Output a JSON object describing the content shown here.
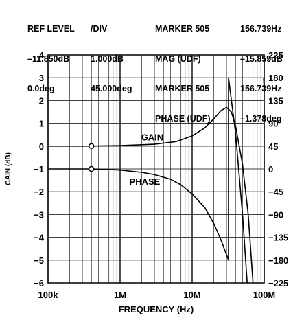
{
  "header": {
    "col1": [
      "REF LEVEL",
      "–11.850dB",
      "0.0deg"
    ],
    "col2": [
      "/DIV",
      "1.000dB",
      "45.000deg"
    ],
    "col3": [
      "MARKER 505",
      "MAG (UDF)",
      "MARKER 505",
      "PHASE (UDF)"
    ],
    "col4": [
      "156.739Hz",
      "–15.859dB",
      "156.739Hz",
      "–1.378deg"
    ]
  },
  "chart_data": {
    "type": "line",
    "xscale": "log",
    "xlim": [
      100000,
      100000000
    ],
    "ylim_left": [
      -6,
      4
    ],
    "ylim_right": [
      -225,
      225
    ],
    "xlabel": "FREQUENCY (Hz)",
    "ylabel": "GAIN (dB)",
    "x_ticks": [
      "100k",
      "1M",
      "10M",
      "100M"
    ],
    "y_ticks_left": [
      "4",
      "3",
      "2",
      "1",
      "0",
      "−1",
      "−2",
      "−3",
      "−4",
      "−5",
      "−6"
    ],
    "y_ticks_right": [
      "225",
      "180",
      "135",
      "90",
      "45",
      "0",
      "−45",
      "−90",
      "−135",
      "−180",
      "−225"
    ],
    "grid": true,
    "annotations": [
      "GAIN",
      "PHASE"
    ],
    "series": [
      {
        "name": "GAIN",
        "axis": "left",
        "x": [
          100000,
          400000,
          1000000,
          3000000,
          6000000,
          10000000,
          15000000,
          20000000,
          25000000,
          30000000,
          35000000,
          40000000,
          50000000,
          60000000,
          70000000
        ],
        "y": [
          0,
          0,
          0.02,
          0.08,
          0.2,
          0.45,
          0.8,
          1.2,
          1.55,
          1.7,
          1.5,
          0.9,
          -0.8,
          -3.0,
          -6.0
        ],
        "marker_x": 400000
      },
      {
        "name": "PHASE",
        "axis": "left",
        "x": [
          100000,
          400000,
          1000000,
          2000000,
          3000000,
          5000000,
          7000000,
          10000000,
          15000000,
          20000000,
          25000000,
          32000000,
          32000000,
          40000000,
          50000000,
          58000000
        ],
        "y": [
          -1,
          -1,
          -1.05,
          -1.15,
          -1.25,
          -1.45,
          -1.7,
          -2.1,
          -2.7,
          -3.4,
          -4.1,
          -5.0,
          3.0,
          0.6,
          -3.0,
          -6.0
        ],
        "marker_x": 400000
      },
      {
        "name": "",
        "axis": "left",
        "x": [
          98000000,
          100000000
        ],
        "y": [
          3.0,
          2.5
        ]
      }
    ]
  }
}
